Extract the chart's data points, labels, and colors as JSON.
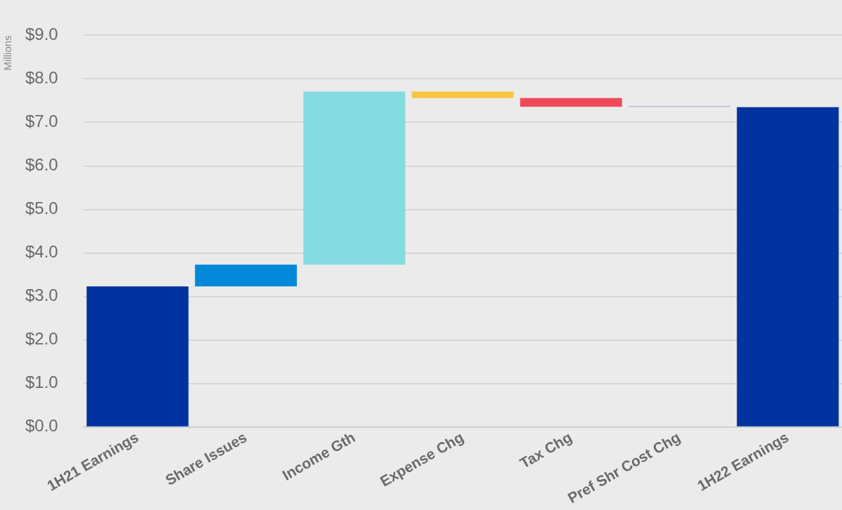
{
  "chart_data": {
    "type": "bar",
    "ylabel": "Millions",
    "categories": [
      "1H21 Earnings",
      "Share Issues",
      "Income Gth",
      "Expense Chg",
      "Tax Chg",
      "Pref Shr Cost Chg",
      "1H22 Earnings"
    ],
    "values": [
      3.23,
      0.5,
      3.98,
      -0.15,
      -0.2,
      -0.01,
      7.35
    ],
    "base": [
      0,
      3.23,
      3.73,
      7.71,
      7.56,
      7.36,
      0
    ],
    "colors": [
      "#0033a0",
      "#0288d8",
      "#84dbe0",
      "#f9c440",
      "#f04a5a",
      "#c8c0e0",
      "#0033a0"
    ],
    "ylim": [
      0,
      9
    ],
    "yticks": [
      {
        "value": 0,
        "label": "$0.0"
      },
      {
        "value": 1,
        "label": "$1.0"
      },
      {
        "value": 2,
        "label": "$2.0"
      },
      {
        "value": 3,
        "label": "$3.0"
      },
      {
        "value": 4,
        "label": "$4.0"
      },
      {
        "value": 5,
        "label": "$5.0"
      },
      {
        "value": 6,
        "label": "$6.0"
      },
      {
        "value": 7,
        "label": "$7.0"
      },
      {
        "value": 8,
        "label": "$8.0"
      },
      {
        "value": 9,
        "label": "$9.0"
      }
    ],
    "grid": "y",
    "legend": false
  }
}
